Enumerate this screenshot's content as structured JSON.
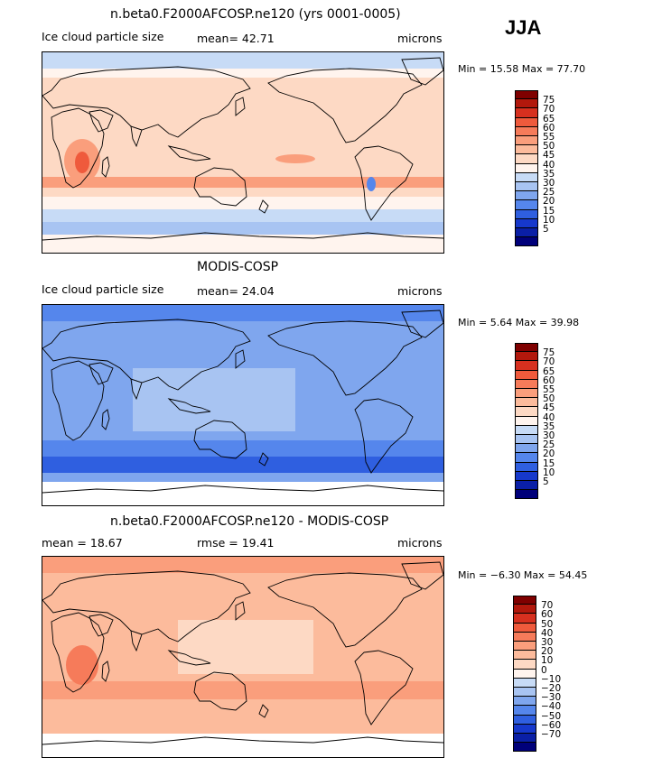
{
  "season": "JJA",
  "panels": [
    {
      "id": "model",
      "title": "n.beta0.F2000AFCOSP.ne120 (yrs 0001-0005)",
      "left_label": "Ice cloud particle size",
      "mid_label": "mean=  42.71",
      "units": "microns",
      "minmax": "Min =  15.58 Max =  77.70",
      "mean": 42.71,
      "min": 15.58,
      "max": 77.7,
      "colorbar_labels": [
        "75",
        "70",
        "65",
        "60",
        "55",
        "50",
        "45",
        "40",
        "35",
        "30",
        "25",
        "20",
        "15",
        "10",
        "5"
      ],
      "colorbar_colors": [
        "#7f0000",
        "#b2180c",
        "#d7301f",
        "#ef5a3c",
        "#f67b5a",
        "#fa9e7c",
        "#fcbb9c",
        "#fdd9c4",
        "#fff4ee",
        "#c7dbf6",
        "#a8c4f2",
        "#7fa6ee",
        "#5586ec",
        "#2f5fe0",
        "#1638cc",
        "#0a1fa6",
        "#00007a"
      ]
    },
    {
      "id": "obs",
      "title": "MODIS-COSP",
      "left_label": "Ice cloud particle size",
      "mid_label": "mean=  24.04",
      "units": "microns",
      "minmax": "Min =   5.64 Max =  39.98",
      "mean": 24.04,
      "min": 5.64,
      "max": 39.98,
      "colorbar_labels": [
        "75",
        "70",
        "65",
        "60",
        "55",
        "50",
        "45",
        "40",
        "35",
        "30",
        "25",
        "20",
        "15",
        "10",
        "5"
      ],
      "colorbar_colors": [
        "#7f0000",
        "#b2180c",
        "#d7301f",
        "#ef5a3c",
        "#f67b5a",
        "#fa9e7c",
        "#fcbb9c",
        "#fdd9c4",
        "#fff4ee",
        "#c7dbf6",
        "#a8c4f2",
        "#7fa6ee",
        "#5586ec",
        "#2f5fe0",
        "#1638cc",
        "#0a1fa6",
        "#00007a"
      ]
    },
    {
      "id": "diff",
      "title": "n.beta0.F2000AFCOSP.ne120 - MODIS-COSP",
      "left_label": "mean =   18.67",
      "mid_label": "rmse =   19.41",
      "units": "microns",
      "minmax": "Min =  −6.30 Max =  54.45",
      "mean": 18.67,
      "rmse": 19.41,
      "min": -6.3,
      "max": 54.45,
      "colorbar_labels": [
        "70",
        "60",
        "50",
        "40",
        "30",
        "20",
        "10",
        "0",
        "−10",
        "−20",
        "−30",
        "−40",
        "−50",
        "−60",
        "−70"
      ],
      "colorbar_colors": [
        "#7f0000",
        "#b2180c",
        "#d7301f",
        "#ef5a3c",
        "#f67b5a",
        "#fa9e7c",
        "#fcbb9c",
        "#fdd9c4",
        "#fff4ee",
        "#c7dbf6",
        "#a8c4f2",
        "#7fa6ee",
        "#5586ec",
        "#2f5fe0",
        "#1638cc",
        "#0a1fa6",
        "#00007a"
      ]
    }
  ],
  "map_colors": {
    "model_base": "#fdd9c4",
    "model_band_light": "#fff4ee",
    "model_band_blue": "#c7dbf6",
    "model_band_blue2": "#a8c4f2",
    "model_hot": "#fa9e7c",
    "model_hot2": "#ef5a3c",
    "obs_base": "#7fa6ee",
    "obs_light": "#a8c4f2",
    "obs_dark": "#5586ec",
    "obs_darker": "#2f5fe0",
    "diff_base": "#fcbb9c",
    "diff_light": "#fdd9c4",
    "diff_hot": "#fa9e7c",
    "diff_hot2": "#f67b5a",
    "diff_white": "#fff4ee",
    "coast": "#000000"
  }
}
